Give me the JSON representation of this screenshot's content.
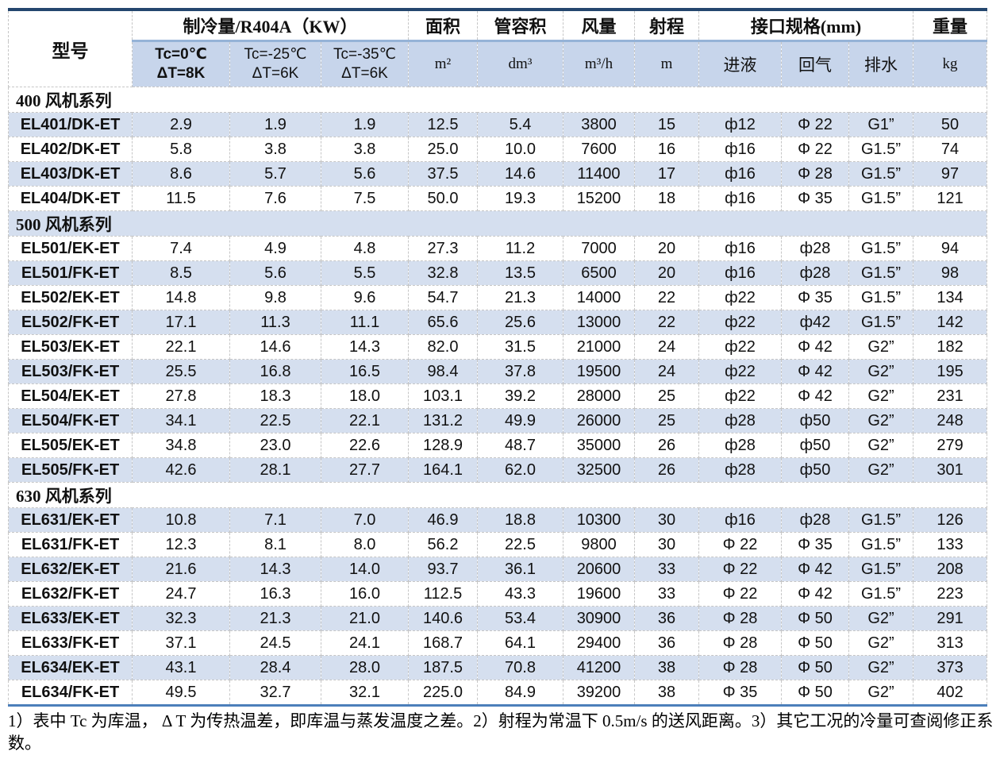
{
  "colors": {
    "stripe": "#D5DFEF",
    "header_band": "#C7D5EB",
    "top_border": "#24466E",
    "bottom_border": "#4C7FBA",
    "header_underline": "#95B3D7"
  },
  "table": {
    "header": {
      "model": "型号",
      "cooling": "制冷量/R404A（KW）",
      "area": "面积",
      "tube_volume": "管容积",
      "air_flow": "风量",
      "throw": "射程",
      "connection": "接口规格(mm)",
      "weight": "重量",
      "tc": [
        {
          "line1": "Tc=0℃",
          "line2": "ΔT=8K",
          "bold": true
        },
        {
          "line1": "Tc=-25℃",
          "line2": "ΔT=6K",
          "bold": false
        },
        {
          "line1": "Tc=-35℃",
          "line2": "ΔT=6K",
          "bold": false
        }
      ],
      "units": [
        "m²",
        "dm³",
        "m³/h",
        "m",
        "进液",
        "回气",
        "排水",
        "kg"
      ]
    },
    "sections": [
      {
        "label": "400 风机系列",
        "rows": [
          {
            "model": "EL401/DK-ET",
            "values": [
              "2.9",
              "1.9",
              "1.9",
              "12.5",
              "5.4",
              "3800",
              "15",
              "ф12",
              "Φ 22",
              "G1”",
              "50"
            ]
          },
          {
            "model": "EL402/DK-ET",
            "values": [
              "5.8",
              "3.8",
              "3.8",
              "25.0",
              "10.0",
              "7600",
              "16",
              "ф16",
              "Φ 22",
              "G1.5”",
              "74"
            ]
          },
          {
            "model": "EL403/DK-ET",
            "values": [
              "8.6",
              "5.7",
              "5.6",
              "37.5",
              "14.6",
              "11400",
              "17",
              "ф16",
              "Φ 28",
              "G1.5”",
              "97"
            ]
          },
          {
            "model": "EL404/DK-ET",
            "values": [
              "11.5",
              "7.6",
              "7.5",
              "50.0",
              "19.3",
              "15200",
              "18",
              "ф16",
              "Φ 35",
              "G1.5”",
              "121"
            ]
          }
        ]
      },
      {
        "label": "500 风机系列",
        "rows": [
          {
            "model": "EL501/EK-ET",
            "values": [
              "7.4",
              "4.9",
              "4.8",
              "27.3",
              "11.2",
              "7000",
              "20",
              "ф16",
              "ф28",
              "G1.5”",
              "94"
            ]
          },
          {
            "model": "EL501/FK-ET",
            "values": [
              "8.5",
              "5.6",
              "5.5",
              "32.8",
              "13.5",
              "6500",
              "20",
              "ф16",
              "ф28",
              "G1.5”",
              "98"
            ]
          },
          {
            "model": "EL502/EK-ET",
            "values": [
              "14.8",
              "9.8",
              "9.6",
              "54.7",
              "21.3",
              "14000",
              "22",
              "ф22",
              "Φ 35",
              "G1.5”",
              "134"
            ]
          },
          {
            "model": "EL502/FK-ET",
            "values": [
              "17.1",
              "11.3",
              "11.1",
              "65.6",
              "25.6",
              "13000",
              "22",
              "ф22",
              "ф42",
              "G1.5”",
              "142"
            ]
          },
          {
            "model": "EL503/EK-ET",
            "values": [
              "22.1",
              "14.6",
              "14.3",
              "82.0",
              "31.5",
              "21000",
              "24",
              "ф22",
              "Φ 42",
              "G2”",
              "182"
            ]
          },
          {
            "model": "EL503/FK-ET",
            "values": [
              "25.5",
              "16.8",
              "16.5",
              "98.4",
              "37.8",
              "19500",
              "24",
              "ф22",
              "Φ 42",
              "G2”",
              "195"
            ]
          },
          {
            "model": "EL504/EK-ET",
            "values": [
              "27.8",
              "18.3",
              "18.0",
              "103.1",
              "39.2",
              "28000",
              "25",
              "ф22",
              "Φ 42",
              "G2”",
              "231"
            ]
          },
          {
            "model": "EL504/FK-ET",
            "values": [
              "34.1",
              "22.5",
              "22.1",
              "131.2",
              "49.9",
              "26000",
              "25",
              "ф28",
              "ф50",
              "G2”",
              "248"
            ]
          },
          {
            "model": "EL505/EK-ET",
            "values": [
              "34.8",
              "23.0",
              "22.6",
              "128.9",
              "48.7",
              "35000",
              "26",
              "ф28",
              "ф50",
              "G2”",
              "279"
            ]
          },
          {
            "model": "EL505/FK-ET",
            "values": [
              "42.6",
              "28.1",
              "27.7",
              "164.1",
              "62.0",
              "32500",
              "26",
              "ф28",
              "ф50",
              "G2”",
              "301"
            ]
          }
        ]
      },
      {
        "label": "630 风机系列",
        "rows": [
          {
            "model": "EL631/EK-ET",
            "values": [
              "10.8",
              "7.1",
              "7.0",
              "46.9",
              "18.8",
              "10300",
              "30",
              "ф16",
              "ф28",
              "G1.5”",
              "126"
            ]
          },
          {
            "model": "EL631/FK-ET",
            "values": [
              "12.3",
              "8.1",
              "8.0",
              "56.2",
              "22.5",
              "9800",
              "30",
              "Φ 22",
              "Φ 35",
              "G1.5”",
              "133"
            ]
          },
          {
            "model": "EL632/EK-ET",
            "values": [
              "21.6",
              "14.3",
              "14.0",
              "93.7",
              "36.1",
              "20600",
              "33",
              "Φ 22",
              "Φ 42",
              "G1.5”",
              "208"
            ]
          },
          {
            "model": "EL632/FK-ET",
            "values": [
              "24.7",
              "16.3",
              "16.0",
              "112.5",
              "43.3",
              "19600",
              "33",
              "Φ 22",
              "Φ 42",
              "G1.5”",
              "223"
            ]
          },
          {
            "model": "EL633/EK-ET",
            "values": [
              "32.3",
              "21.3",
              "21.0",
              "140.6",
              "53.4",
              "30900",
              "36",
              "Φ 28",
              "Φ 50",
              "G2”",
              "291"
            ]
          },
          {
            "model": "EL633/FK-ET",
            "values": [
              "37.1",
              "24.5",
              "24.1",
              "168.7",
              "64.1",
              "29400",
              "36",
              "Φ 28",
              "Φ 50",
              "G2”",
              "313"
            ]
          },
          {
            "model": "EL634/EK-ET",
            "values": [
              "43.1",
              "28.4",
              "28.0",
              "187.5",
              "70.8",
              "41200",
              "38",
              "Φ 28",
              "Φ 50",
              "G2”",
              "373"
            ]
          },
          {
            "model": "EL634/FK-ET",
            "values": [
              "49.5",
              "32.7",
              "32.1",
              "225.0",
              "84.9",
              "39200",
              "38",
              "Φ 35",
              "Φ 50",
              "G2”",
              "402"
            ]
          }
        ]
      }
    ]
  },
  "footnote": "1）表中 Tc 为库温， Δ T 为传热温差，即库温与蒸发温度之差。2）射程为常温下 0.5m/s 的送风距离。3）其它工况的冷量可查阅修正系数。"
}
